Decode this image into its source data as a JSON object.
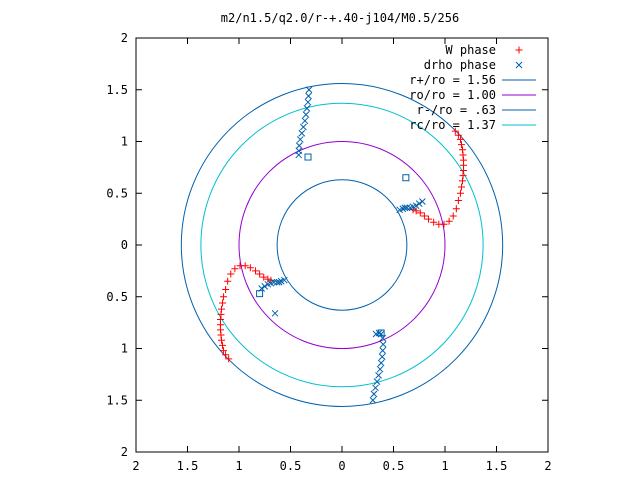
{
  "chart_data": {
    "type": "scatter",
    "title": "m2/n1.5/q2.0/r-+.40-j104/M0.5/256",
    "xlabel": "",
    "ylabel": "",
    "xlim": [
      -2,
      2
    ],
    "ylim": [
      -2,
      2
    ],
    "x_tick_values": [
      -2,
      -1.5,
      -1,
      -0.5,
      0,
      0.5,
      1,
      1.5,
      2
    ],
    "x_tick_labels": [
      "2",
      "1.5",
      "1",
      "0.5",
      "0",
      "0.5",
      "1",
      "1.5",
      "2"
    ],
    "y_tick_values": [
      2,
      1.5,
      1,
      0.5,
      0,
      -0.5,
      -1,
      -1.5,
      -2
    ],
    "y_tick_labels": [
      "2",
      "1.5",
      "1",
      "0.5",
      "0",
      "0.5",
      "1",
      "1.5",
      "2"
    ],
    "grid": false,
    "legend_position": "top-right",
    "circles": [
      {
        "label": "r+/ro = 1.56",
        "r": 1.56,
        "color": "#0060ad"
      },
      {
        "label": "ro/ro = 1.00",
        "r": 1.0,
        "color": "#9400d3"
      },
      {
        "label": "r-/ro = .63",
        "r": 0.63,
        "color": "#0060ad"
      },
      {
        "label": "rc/ro = 1.37",
        "r": 1.37,
        "color": "#00c0d0"
      }
    ],
    "series": [
      {
        "name": "W phase",
        "marker": "plus",
        "color": "#ff0000",
        "points": [
          [
            1.1,
            1.1
          ],
          [
            1.13,
            1.06
          ],
          [
            1.15,
            1.02
          ],
          [
            1.16,
            0.97
          ],
          [
            1.17,
            0.92
          ],
          [
            1.175,
            0.87
          ],
          [
            1.18,
            0.82
          ],
          [
            1.18,
            0.77
          ],
          [
            1.18,
            0.72
          ],
          [
            1.175,
            0.67
          ],
          [
            1.17,
            0.62
          ],
          [
            1.16,
            0.56
          ],
          [
            1.15,
            0.5
          ],
          [
            1.13,
            0.43
          ],
          [
            1.11,
            0.35
          ],
          [
            1.08,
            0.28
          ],
          [
            1.04,
            0.23
          ],
          [
            0.99,
            0.2
          ],
          [
            0.94,
            0.2
          ],
          [
            0.89,
            0.22
          ],
          [
            0.84,
            0.25
          ],
          [
            0.8,
            0.28
          ],
          [
            0.76,
            0.31
          ],
          [
            0.72,
            0.33
          ],
          [
            0.69,
            0.34
          ],
          [
            -1.1,
            -1.1
          ],
          [
            -1.13,
            -1.06
          ],
          [
            -1.15,
            -1.02
          ],
          [
            -1.16,
            -0.97
          ],
          [
            -1.17,
            -0.92
          ],
          [
            -1.175,
            -0.87
          ],
          [
            -1.18,
            -0.82
          ],
          [
            -1.18,
            -0.77
          ],
          [
            -1.18,
            -0.72
          ],
          [
            -1.175,
            -0.67
          ],
          [
            -1.17,
            -0.62
          ],
          [
            -1.16,
            -0.56
          ],
          [
            -1.15,
            -0.5
          ],
          [
            -1.13,
            -0.43
          ],
          [
            -1.11,
            -0.35
          ],
          [
            -1.08,
            -0.28
          ],
          [
            -1.04,
            -0.23
          ],
          [
            -0.99,
            -0.2
          ],
          [
            -0.94,
            -0.2
          ],
          [
            -0.89,
            -0.22
          ],
          [
            -0.84,
            -0.25
          ],
          [
            -0.8,
            -0.28
          ],
          [
            -0.76,
            -0.31
          ],
          [
            -0.72,
            -0.33
          ],
          [
            -0.69,
            -0.34
          ]
        ]
      },
      {
        "name": "drho phase",
        "marker": "cross",
        "color": "#0060ad",
        "points": [
          [
            -0.32,
            1.5
          ],
          [
            -0.325,
            1.44
          ],
          [
            -0.33,
            1.38
          ],
          [
            -0.34,
            1.32
          ],
          [
            -0.35,
            1.26
          ],
          [
            -0.36,
            1.2
          ],
          [
            -0.375,
            1.14
          ],
          [
            -0.39,
            1.08
          ],
          [
            -0.405,
            1.02
          ],
          [
            -0.415,
            0.96
          ],
          [
            -0.42,
            0.91
          ],
          [
            -0.42,
            0.87
          ],
          [
            0.3,
            -1.5
          ],
          [
            0.31,
            -1.44
          ],
          [
            0.325,
            -1.38
          ],
          [
            0.34,
            -1.32
          ],
          [
            0.355,
            -1.26
          ],
          [
            0.37,
            -1.2
          ],
          [
            0.38,
            -1.14
          ],
          [
            0.39,
            -1.08
          ],
          [
            0.395,
            -1.02
          ],
          [
            0.4,
            -0.96
          ],
          [
            0.395,
            -0.9
          ],
          [
            0.38,
            -0.86
          ],
          [
            0.36,
            -0.85
          ],
          [
            0.78,
            0.42
          ],
          [
            0.75,
            0.4
          ],
          [
            0.72,
            0.38
          ],
          [
            0.69,
            0.37
          ],
          [
            0.66,
            0.36
          ],
          [
            0.63,
            0.36
          ],
          [
            0.61,
            0.36
          ],
          [
            0.59,
            0.35
          ],
          [
            0.56,
            0.34
          ],
          [
            -0.78,
            -0.42
          ],
          [
            -0.75,
            -0.4
          ],
          [
            -0.72,
            -0.38
          ],
          [
            -0.69,
            -0.37
          ],
          [
            -0.66,
            -0.36
          ],
          [
            -0.63,
            -0.36
          ],
          [
            -0.61,
            -0.36
          ],
          [
            -0.59,
            -0.35
          ],
          [
            -0.56,
            -0.34
          ],
          [
            -0.65,
            -0.66
          ],
          [
            0.33,
            -0.86
          ]
        ]
      }
    ],
    "box_markers": {
      "color": "#0060ad",
      "points": [
        [
          -0.33,
          0.85
        ],
        [
          0.62,
          0.65
        ],
        [
          -0.8,
          -0.47
        ],
        [
          0.38,
          -0.85
        ]
      ]
    }
  }
}
